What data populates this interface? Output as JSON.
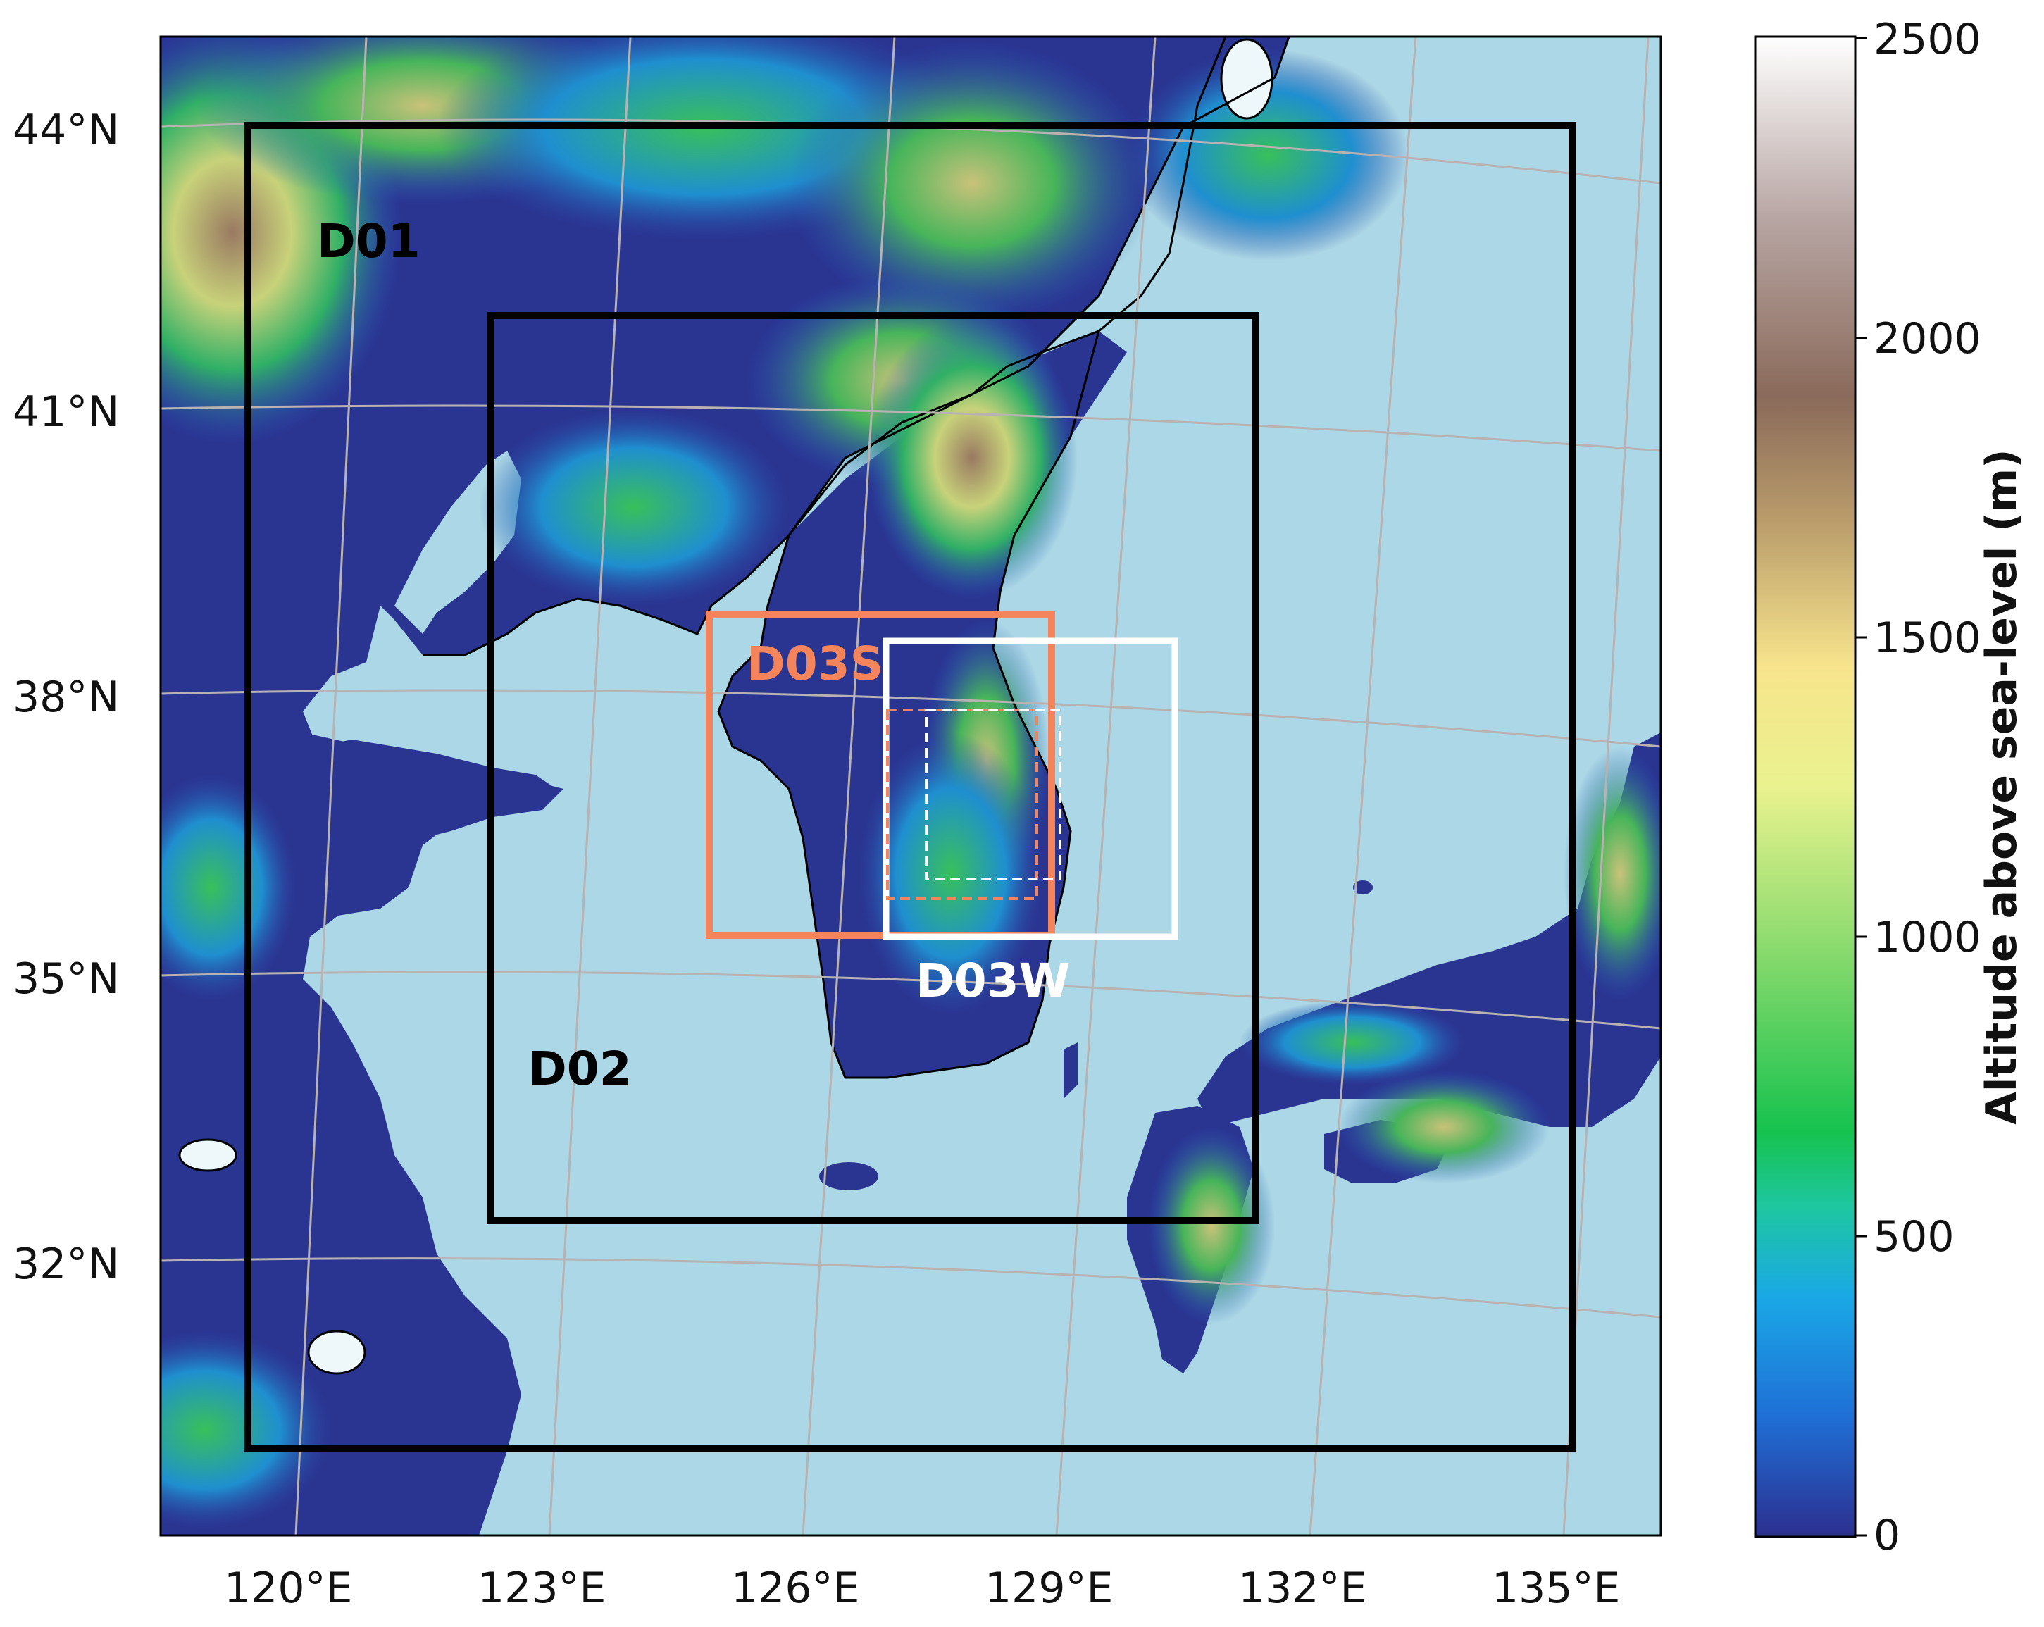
{
  "map": {
    "lat_labels": [
      "44°N",
      "41°N",
      "38°N",
      "35°N",
      "32°N"
    ],
    "lon_labels": [
      "120°E",
      "123°E",
      "126°E",
      "129°E",
      "132°E",
      "135°E"
    ],
    "domains": [
      {
        "label": "D01",
        "color": "#000000"
      },
      {
        "label": "D02",
        "color": "#000000"
      },
      {
        "label": "D03S",
        "color": "#f4845c"
      },
      {
        "label": "D03W",
        "color": "#ffffff"
      }
    ],
    "colors": {
      "ocean": "#acd7e6",
      "lowland": "#2a3592",
      "domain_d01_d02": "#000000",
      "domain_d03s": "#f4845c",
      "domain_d03w": "#ffffff"
    }
  },
  "colorbar": {
    "label": "Altitude above sea-level (m)",
    "ticks": [
      "0",
      "500",
      "1000",
      "1500",
      "2000",
      "2500"
    ],
    "range": [
      0,
      2500
    ],
    "colormap": "terrain-like",
    "stops": [
      "#2c2f8f",
      "#1f6fd6",
      "#1aa8e6",
      "#1ec7a0",
      "#16c24e",
      "#7fd86a",
      "#eaf28e",
      "#f7e48c",
      "#b89a6a",
      "#8a6a5a",
      "#b8a6a4",
      "#ffffff"
    ]
  }
}
